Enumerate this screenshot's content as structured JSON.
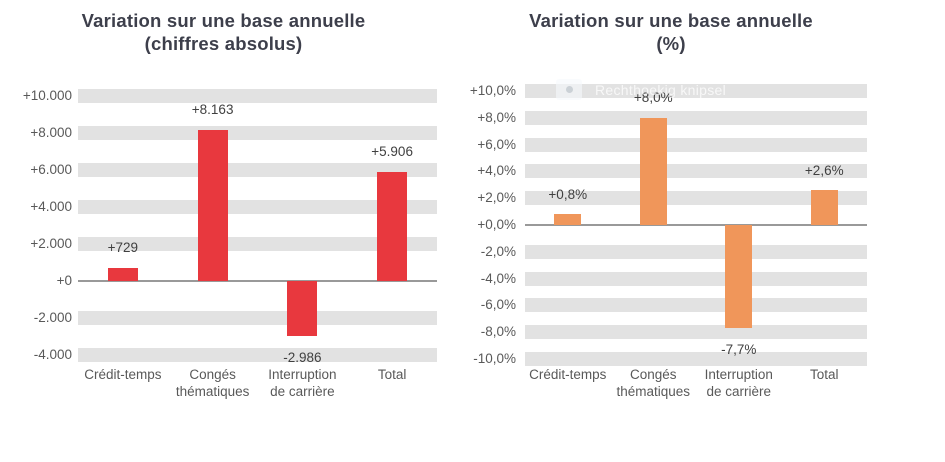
{
  "watermark": {
    "icon": "snip-bullet-icon",
    "label": "Rechthoekig knipsel"
  },
  "colors": {
    "title_text": "#3d3f4b",
    "axis_text": "#595959",
    "data_label_text": "#404040",
    "grid_band": "#e2e2e2",
    "zero_line": "#999999",
    "red_bar": "#e8383e",
    "orange_bar": "#f0965a"
  },
  "chart_data": [
    {
      "type": "bar",
      "title": "Variation sur une base annuelle",
      "subtitle": "(chiffres absolus)",
      "categories": [
        "Crédit-temps",
        "Congés\nthématiques",
        "Interruption\nde carrière",
        "Total"
      ],
      "values": [
        729,
        8163,
        -2986,
        5906
      ],
      "data_labels": [
        "+729",
        "+8.163",
        "-2.986",
        "+5.906"
      ],
      "tick_values": [
        10000,
        8000,
        6000,
        4000,
        2000,
        0,
        -2000,
        -4000
      ],
      "tick_labels": [
        "+10.000",
        "+8.000",
        "+6.000",
        "+4.000",
        "+2.000",
        "+0",
        "-2.000",
        "-4.000"
      ],
      "ylim": [
        -4000,
        10000
      ],
      "grid": "horizontal-bands",
      "legend": "none",
      "bar_color": "#e8383e",
      "band_color": "#e2e2e2",
      "axis_line_color": "#999999"
    },
    {
      "type": "bar",
      "title": "Variation sur une base annuelle",
      "subtitle": "(%)",
      "categories": [
        "Crédit-temps",
        "Congés\nthématiques",
        "Interruption\nde carrière",
        "Total"
      ],
      "values": [
        0.8,
        8.0,
        -7.7,
        2.6
      ],
      "data_labels": [
        "+0,8%",
        "+8,0%",
        "-7,7%",
        "+2,6%"
      ],
      "tick_values": [
        10,
        8,
        6,
        4,
        2,
        0,
        -2,
        -4,
        -6,
        -8,
        -10
      ],
      "tick_labels": [
        "+10,0%",
        "+8,0%",
        "+6,0%",
        "+4,0%",
        "+2,0%",
        "+0,0%",
        "-2,0%",
        "-4,0%",
        "-6,0%",
        "-8,0%",
        "-10,0%"
      ],
      "ylim": [
        -10,
        10
      ],
      "grid": "horizontal-bands",
      "legend": "none",
      "bar_color": "#f0965a",
      "band_color": "#e2e2e2",
      "axis_line_color": "#999999"
    }
  ]
}
